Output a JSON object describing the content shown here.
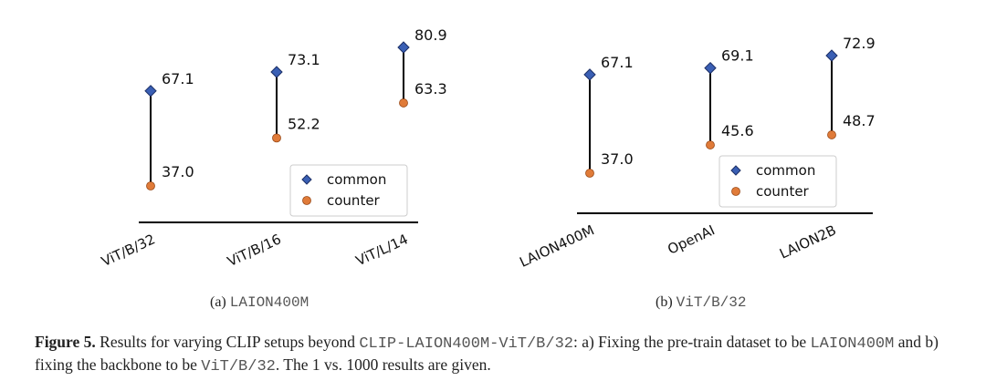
{
  "chart_data": [
    {
      "type": "dumbbell",
      "categories": [
        "ViT/B/32",
        "ViT/B/16",
        "ViT/L/14"
      ],
      "series": [
        {
          "name": "common",
          "values": [
            67.1,
            73.1,
            80.9
          ],
          "color": "#3a5fb4",
          "marker": "diamond"
        },
        {
          "name": "counter",
          "values": [
            37.0,
            52.2,
            63.3
          ],
          "color": "#e07b39",
          "marker": "circle"
        }
      ],
      "value_labels": {
        "common": [
          "67.1",
          "73.1",
          "80.9"
        ],
        "counter": [
          "37.0",
          "52.2",
          "63.3"
        ]
      },
      "legend": [
        "common",
        "counter"
      ],
      "legend_position": "lower-right",
      "grid": false,
      "subcaption_prefix": "(a)",
      "subcaption_code": "LAION400M"
    },
    {
      "type": "dumbbell",
      "categories": [
        "LAION400M",
        "OpenAI",
        "LAION2B"
      ],
      "series": [
        {
          "name": "common",
          "values": [
            67.1,
            69.1,
            72.9
          ],
          "color": "#3a5fb4",
          "marker": "diamond"
        },
        {
          "name": "counter",
          "values": [
            37.0,
            45.6,
            48.7
          ],
          "color": "#e07b39",
          "marker": "circle"
        }
      ],
      "value_labels": {
        "common": [
          "67.1",
          "69.1",
          "72.9"
        ],
        "counter": [
          "37.0",
          "45.6",
          "48.7"
        ]
      },
      "legend": [
        "common",
        "counter"
      ],
      "legend_position": "lower-right",
      "grid": false,
      "subcaption_prefix": "(b)",
      "subcaption_code": "ViT/B/32"
    }
  ],
  "caption": {
    "label": "Figure 5.",
    "t1": " Results for varying CLIP setups beyond ",
    "c1": "CLIP-LAION400M-ViT/B/32",
    "t2": ": a) Fixing the pre-train dataset to be ",
    "c2": "LAION400M",
    "t3": " and b) fixing the backbone to be ",
    "c3": "ViT/B/32",
    "t4": ". The 1 vs. 1000 results are given."
  }
}
